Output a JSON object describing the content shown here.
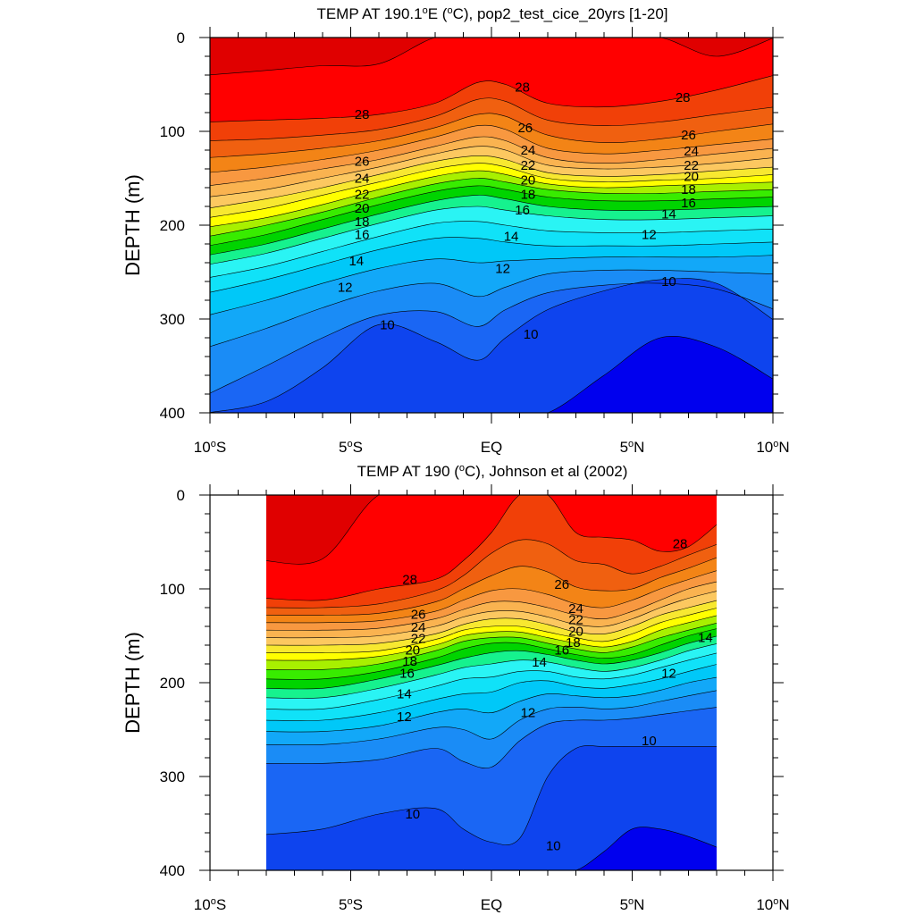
{
  "colors": {
    "levels_boundaries": [
      8,
      9,
      10,
      11,
      12,
      13,
      14,
      15,
      16,
      17,
      18,
      19,
      20,
      21,
      22,
      23,
      24,
      25,
      26,
      27,
      28,
      29
    ],
    "bands": [
      "#0000ee",
      "#0e44ee",
      "#1a66f4",
      "#1a8cf6",
      "#12a8f8",
      "#00c8f8",
      "#10e2f8",
      "#2af4f4",
      "#16f28e",
      "#00d400",
      "#38ec00",
      "#a8f000",
      "#ffff00",
      "#f8e830",
      "#fcc860",
      "#fab350",
      "#f89840",
      "#f38416",
      "#f06010",
      "#f14008",
      "#ff0000",
      "#e00000"
    ]
  },
  "chart_data": [
    {
      "type": "contour",
      "title_pre": "TEMP AT 190.1",
      "title_sup": "o",
      "title_post": "E (",
      "title_sup2": "o",
      "title_end": "C), pop2_test_cice_20yrs [1-20]",
      "ylabel": "DEPTH (m)",
      "xlim": [
        -10,
        10
      ],
      "ylim": [
        0,
        400
      ],
      "data_xlim": [
        -10,
        10
      ],
      "yticks": [
        0,
        100,
        200,
        300,
        400
      ],
      "xticks": [
        {
          "value": -10,
          "num": "10",
          "hemi": "S"
        },
        {
          "value": -5,
          "num": "5",
          "hemi": "S"
        },
        {
          "value": 0,
          "num": "",
          "hemi": "EQ"
        },
        {
          "value": 5,
          "num": "5",
          "hemi": "N"
        },
        {
          "value": 10,
          "num": "10",
          "hemi": "N"
        }
      ],
      "isotherm_depth_profiles": {
        "lat": [
          -10,
          -8,
          -6,
          -4,
          -2,
          -0.5,
          0.5,
          2,
          4,
          6,
          8,
          10
        ],
        "29": [
          40,
          35,
          30,
          28,
          0,
          0,
          0,
          0,
          0,
          0,
          20,
          0
        ],
        "28": [
          90,
          88,
          86,
          82,
          70,
          48,
          50,
          70,
          74,
          68,
          56,
          40
        ],
        "27": [
          110,
          108,
          104,
          98,
          84,
          66,
          68,
          88,
          94,
          90,
          82,
          74
        ],
        "26": [
          128,
          124,
          118,
          110,
          96,
          82,
          84,
          104,
          112,
          108,
          100,
          92
        ],
        "25": [
          144,
          138,
          130,
          120,
          106,
          94,
          98,
          118,
          124,
          120,
          114,
          108
        ],
        "24": [
          158,
          150,
          140,
          130,
          116,
          106,
          110,
          128,
          134,
          130,
          124,
          118
        ],
        "23": [
          170,
          162,
          150,
          138,
          124,
          116,
          120,
          136,
          140,
          138,
          134,
          128
        ],
        "22": [
          182,
          172,
          160,
          146,
          132,
          126,
          130,
          144,
          148,
          146,
          142,
          138
        ],
        "21": [
          192,
          182,
          168,
          154,
          140,
          134,
          138,
          150,
          154,
          152,
          150,
          146
        ],
        "20": [
          202,
          192,
          178,
          162,
          148,
          142,
          146,
          156,
          160,
          158,
          156,
          154
        ],
        "19": [
          212,
          200,
          186,
          170,
          156,
          150,
          154,
          162,
          166,
          166,
          164,
          162
        ],
        "18": [
          222,
          210,
          194,
          178,
          164,
          158,
          162,
          170,
          174,
          174,
          172,
          170
        ],
        "17": [
          232,
          220,
          204,
          188,
          174,
          168,
          172,
          180,
          184,
          184,
          182,
          180
        ],
        "16": [
          242,
          230,
          214,
          198,
          184,
          180,
          184,
          190,
          194,
          194,
          192,
          190
        ],
        "15": [
          256,
          244,
          228,
          212,
          198,
          196,
          200,
          206,
          208,
          208,
          206,
          204
        ],
        "14": [
          272,
          258,
          242,
          226,
          214,
          214,
          218,
          222,
          222,
          222,
          220,
          218
        ],
        "13": [
          296,
          280,
          262,
          246,
          236,
          240,
          238,
          236,
          234,
          234,
          234,
          232
        ],
        "12": [
          330,
          310,
          288,
          270,
          262,
          276,
          266,
          252,
          248,
          248,
          250,
          252
        ],
        "11": [
          380,
          350,
          320,
          296,
          292,
          308,
          290,
          272,
          264,
          262,
          268,
          290
        ],
        "10": [
          400,
          388,
          352,
          306,
          324,
          344,
          320,
          290,
          270,
          258,
          262,
          302
        ],
        "9": [
          400,
          400,
          400,
          400,
          400,
          400,
          400,
          400,
          360,
          320,
          330,
          365
        ]
      },
      "contour_labels": [
        {
          "text": "28",
          "lat": -4.6,
          "depth": 82
        },
        {
          "text": "28",
          "lat": 1.1,
          "depth": 53
        },
        {
          "text": "28",
          "lat": 6.8,
          "depth": 64
        },
        {
          "text": "26",
          "lat": -4.6,
          "depth": 132
        },
        {
          "text": "26",
          "lat": 1.2,
          "depth": 96
        },
        {
          "text": "26",
          "lat": 7.0,
          "depth": 104
        },
        {
          "text": "24",
          "lat": -4.6,
          "depth": 150
        },
        {
          "text": "24",
          "lat": 1.3,
          "depth": 120
        },
        {
          "text": "24",
          "lat": 7.1,
          "depth": 121
        },
        {
          "text": "22",
          "lat": -4.6,
          "depth": 167
        },
        {
          "text": "22",
          "lat": 1.3,
          "depth": 136
        },
        {
          "text": "22",
          "lat": 7.1,
          "depth": 136
        },
        {
          "text": "20",
          "lat": -4.6,
          "depth": 182
        },
        {
          "text": "20",
          "lat": 1.3,
          "depth": 152
        },
        {
          "text": "20",
          "lat": 7.1,
          "depth": 148
        },
        {
          "text": "18",
          "lat": -4.6,
          "depth": 196
        },
        {
          "text": "18",
          "lat": 1.3,
          "depth": 167
        },
        {
          "text": "18",
          "lat": 7.0,
          "depth": 162
        },
        {
          "text": "16",
          "lat": -4.6,
          "depth": 210
        },
        {
          "text": "16",
          "lat": 1.1,
          "depth": 184
        },
        {
          "text": "16",
          "lat": 7.0,
          "depth": 176
        },
        {
          "text": "14",
          "lat": -4.8,
          "depth": 238
        },
        {
          "text": "14",
          "lat": 0.7,
          "depth": 212
        },
        {
          "text": "14",
          "lat": 6.3,
          "depth": 188
        },
        {
          "text": "12",
          "lat": -5.2,
          "depth": 266
        },
        {
          "text": "12",
          "lat": 0.4,
          "depth": 246
        },
        {
          "text": "12",
          "lat": 5.6,
          "depth": 210
        },
        {
          "text": "10",
          "lat": -3.7,
          "depth": 306
        },
        {
          "text": "10",
          "lat": 1.4,
          "depth": 316
        },
        {
          "text": "10",
          "lat": 6.3,
          "depth": 260
        }
      ]
    },
    {
      "type": "contour",
      "title_pre": "TEMP AT 190 (",
      "title_sup": "o",
      "title_post": "C), Johnson et al (2002)",
      "title_sup2": "",
      "title_end": "",
      "ylabel": "DEPTH (m)",
      "xlim": [
        -10,
        10
      ],
      "ylim": [
        0,
        400
      ],
      "data_xlim": [
        -8,
        8
      ],
      "yticks": [
        0,
        100,
        200,
        300,
        400
      ],
      "xticks": [
        {
          "value": -10,
          "num": "10",
          "hemi": "S"
        },
        {
          "value": -5,
          "num": "5",
          "hemi": "S"
        },
        {
          "value": 0,
          "num": "",
          "hemi": "EQ"
        },
        {
          "value": 5,
          "num": "5",
          "hemi": "N"
        },
        {
          "value": 10,
          "num": "10",
          "hemi": "N"
        }
      ],
      "isotherm_depth_profiles": {
        "lat": [
          -8,
          -6,
          -4,
          -2,
          -1,
          0,
          1,
          2,
          3,
          4,
          5,
          6,
          7,
          8
        ],
        "29": [
          70,
          68,
          0,
          0,
          0,
          0,
          0,
          0,
          0,
          0,
          0,
          0,
          0,
          0
        ],
        "28": [
          110,
          112,
          100,
          90,
          70,
          40,
          0,
          0,
          40,
          45,
          48,
          60,
          55,
          30
        ],
        "27": [
          120,
          120,
          116,
          102,
          86,
          62,
          48,
          52,
          70,
          74,
          84,
          76,
          64,
          52
        ],
        "26": [
          128,
          128,
          126,
          114,
          100,
          86,
          76,
          82,
          98,
          102,
          100,
          88,
          78,
          66
        ],
        "25": [
          136,
          136,
          134,
          124,
          112,
          102,
          100,
          106,
          116,
          120,
          112,
          100,
          90,
          80
        ],
        "24": [
          144,
          144,
          142,
          132,
          122,
          114,
          114,
          120,
          128,
          132,
          124,
          112,
          100,
          92
        ],
        "23": [
          152,
          152,
          150,
          140,
          130,
          124,
          124,
          130,
          138,
          140,
          132,
          120,
          110,
          102
        ],
        "22": [
          160,
          160,
          158,
          148,
          138,
          132,
          132,
          138,
          146,
          148,
          140,
          128,
          120,
          112
        ],
        "21": [
          168,
          168,
          166,
          154,
          144,
          140,
          140,
          146,
          152,
          156,
          148,
          136,
          128,
          120
        ],
        "20": [
          176,
          176,
          172,
          160,
          150,
          146,
          146,
          152,
          158,
          162,
          156,
          144,
          136,
          128
        ],
        "19": [
          186,
          186,
          180,
          166,
          156,
          152,
          152,
          158,
          164,
          168,
          162,
          152,
          144,
          136
        ],
        "18": [
          196,
          196,
          188,
          174,
          164,
          158,
          158,
          164,
          170,
          174,
          170,
          160,
          150,
          142
        ],
        "17": [
          206,
          206,
          196,
          182,
          174,
          168,
          166,
          170,
          176,
          180,
          176,
          168,
          158,
          150
        ],
        "16": [
          216,
          216,
          206,
          192,
          184,
          180,
          176,
          178,
          184,
          188,
          184,
          176,
          166,
          158
        ],
        "15": [
          228,
          228,
          218,
          204,
          196,
          194,
          188,
          188,
          194,
          196,
          192,
          184,
          176,
          168
        ],
        "14": [
          240,
          240,
          232,
          218,
          212,
          210,
          200,
          198,
          204,
          206,
          202,
          196,
          188,
          180
        ],
        "13": [
          252,
          252,
          246,
          232,
          228,
          232,
          220,
          212,
          214,
          216,
          214,
          208,
          200,
          194
        ],
        "12": [
          266,
          266,
          260,
          248,
          250,
          260,
          240,
          228,
          226,
          228,
          226,
          220,
          214,
          208
        ],
        "11": [
          286,
          286,
          282,
          270,
          284,
          290,
          262,
          244,
          240,
          240,
          238,
          234,
          230,
          226
        ],
        "10": [
          362,
          356,
          340,
          334,
          356,
          370,
          366,
          300,
          270,
          268,
          268,
          268,
          268,
          268
        ],
        "9": [
          400,
          400,
          400,
          400,
          400,
          400,
          400,
          400,
          400,
          380,
          356,
          356,
          364,
          376
        ]
      },
      "contour_labels": [
        {
          "text": "28",
          "lat": -2.9,
          "depth": 90
        },
        {
          "text": "28",
          "lat": 6.7,
          "depth": 52
        },
        {
          "text": "26",
          "lat": 2.5,
          "depth": 95
        },
        {
          "text": "26",
          "lat": -2.6,
          "depth": 127
        },
        {
          "text": "24",
          "lat": -2.6,
          "depth": 141
        },
        {
          "text": "24",
          "lat": 3.0,
          "depth": 121
        },
        {
          "text": "22",
          "lat": -2.6,
          "depth": 153
        },
        {
          "text": "22",
          "lat": 3.0,
          "depth": 133
        },
        {
          "text": "20",
          "lat": -2.8,
          "depth": 165
        },
        {
          "text": "20",
          "lat": 3.0,
          "depth": 145
        },
        {
          "text": "18",
          "lat": -2.9,
          "depth": 177
        },
        {
          "text": "18",
          "lat": 2.9,
          "depth": 157
        },
        {
          "text": "16",
          "lat": -3.0,
          "depth": 190
        },
        {
          "text": "16",
          "lat": 2.5,
          "depth": 165
        },
        {
          "text": "14",
          "lat": -3.1,
          "depth": 212
        },
        {
          "text": "14",
          "lat": 1.7,
          "depth": 178
        },
        {
          "text": "14",
          "lat": 7.6,
          "depth": 152
        },
        {
          "text": "12",
          "lat": -3.1,
          "depth": 236
        },
        {
          "text": "12",
          "lat": 1.3,
          "depth": 232
        },
        {
          "text": "12",
          "lat": 6.3,
          "depth": 190
        },
        {
          "text": "10",
          "lat": 5.6,
          "depth": 262
        },
        {
          "text": "10",
          "lat": -2.8,
          "depth": 340
        },
        {
          "text": "10",
          "lat": 2.2,
          "depth": 374
        }
      ]
    }
  ]
}
